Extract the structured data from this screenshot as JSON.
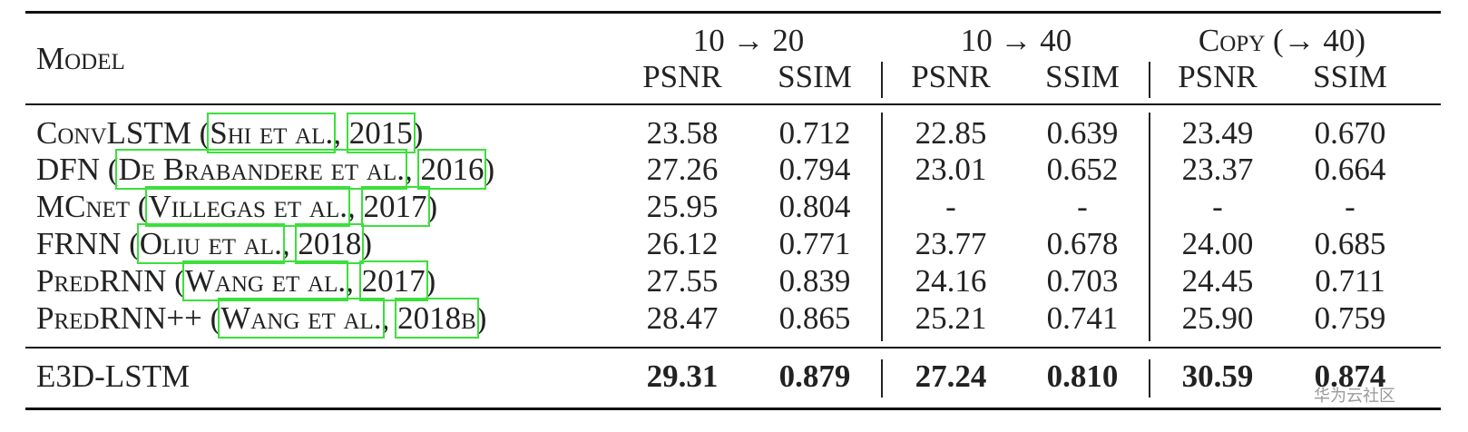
{
  "table": {
    "model_header": "Model",
    "groups": [
      "10 → 20",
      "10 → 40",
      "Copy (→ 40)"
    ],
    "metrics": [
      "PSNR",
      "SSIM",
      "PSNR",
      "SSIM",
      "PSNR",
      "SSIM"
    ],
    "rows": [
      {
        "label_parts": [
          "ConvLSTM (",
          "Shi et al.",
          ", ",
          "2015",
          ")"
        ],
        "values": [
          "23.58",
          "0.712",
          "22.85",
          "0.639",
          "23.49",
          "0.670"
        ]
      },
      {
        "label_parts": [
          "DFN (",
          "De Brabandere et al.",
          ", ",
          "2016",
          ")"
        ],
        "values": [
          "27.26",
          "0.794",
          "23.01",
          "0.652",
          "23.37",
          "0.664"
        ]
      },
      {
        "label_parts": [
          "MCnet (",
          "Villegas et al.",
          ", ",
          "2017",
          ")"
        ],
        "values": [
          "25.95",
          "0.804",
          "-",
          "-",
          "-",
          "-"
        ]
      },
      {
        "label_parts": [
          "FRNN (",
          "Oliu et al.",
          ", ",
          "2018",
          ")"
        ],
        "values": [
          "26.12",
          "0.771",
          "23.77",
          "0.678",
          "24.00",
          "0.685"
        ]
      },
      {
        "label_parts": [
          "PredRNN (",
          "Wang et al.",
          ", ",
          "2017",
          ")"
        ],
        "values": [
          "27.55",
          "0.839",
          "24.16",
          "0.703",
          "24.45",
          "0.711"
        ]
      },
      {
        "label_parts": [
          "PredRNN++ (",
          "Wang et al.",
          ", ",
          "2018b",
          ")"
        ],
        "values": [
          "28.47",
          "0.865",
          "25.21",
          "0.741",
          "25.90",
          "0.759"
        ]
      }
    ],
    "final_row": {
      "label": "E3D-LSTM",
      "values": [
        "29.31",
        "0.879",
        "27.24",
        "0.810",
        "30.59",
        "0.874"
      ]
    }
  },
  "watermark": "华为云社区"
}
